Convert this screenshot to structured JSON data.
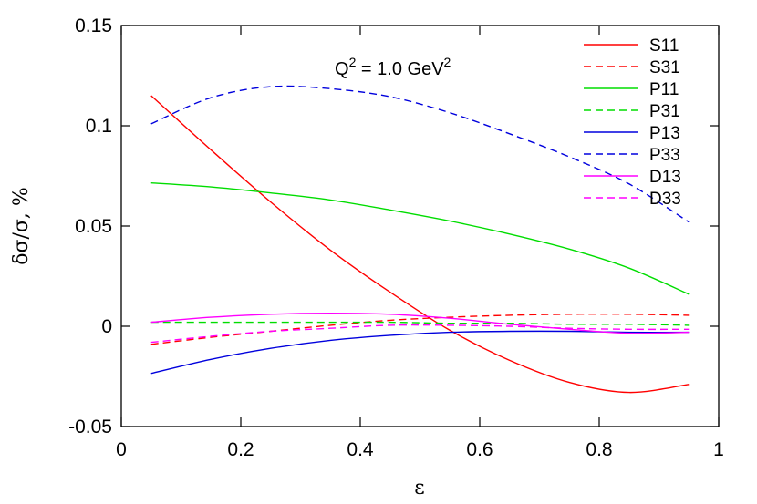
{
  "chart_data": {
    "type": "line",
    "xlabel": "ε",
    "ylabel": "δσ/σ, %",
    "xlim": [
      0,
      1
    ],
    "ylim": [
      -0.05,
      0.15
    ],
    "xticks": [
      "0",
      "0.2",
      "0.4",
      "0.6",
      "0.8",
      "1"
    ],
    "yticks": [
      "-0.05",
      "0",
      "0.05",
      "0.1",
      "0.15"
    ],
    "grid": false,
    "legend_position": "top-right",
    "annotation": {
      "text": "Q",
      "sup1": "2",
      "text2": " = 1.0 GeV",
      "sup2": "2"
    },
    "x": [
      0.05,
      0.15,
      0.25,
      0.35,
      0.45,
      0.55,
      0.65,
      0.75,
      0.85,
      0.95
    ],
    "series": [
      {
        "name": "S11",
        "color": "#ff0000",
        "dash": "solid",
        "values": [
          0.115,
          0.088,
          0.062,
          0.038,
          0.017,
          -0.002,
          -0.017,
          -0.028,
          -0.033,
          -0.029
        ]
      },
      {
        "name": "S31",
        "color": "#ff0000",
        "dash": "dashed",
        "values": [
          -0.009,
          -0.0055,
          -0.0025,
          0.0005,
          0.003,
          0.0045,
          0.0055,
          0.006,
          0.006,
          0.0055
        ]
      },
      {
        "name": "P11",
        "color": "#00dd00",
        "dash": "solid",
        "values": [
          0.0715,
          0.0695,
          0.0665,
          0.063,
          0.058,
          0.0525,
          0.046,
          0.0385,
          0.029,
          0.016
        ]
      },
      {
        "name": "P31",
        "color": "#00dd00",
        "dash": "dashed",
        "values": [
          0.002,
          0.002,
          0.002,
          0.002,
          0.002,
          0.0015,
          0.0015,
          0.001,
          0.001,
          0.0005
        ]
      },
      {
        "name": "P13",
        "color": "#0000dd",
        "dash": "solid",
        "values": [
          -0.0235,
          -0.0165,
          -0.011,
          -0.007,
          -0.0045,
          -0.003,
          -0.0025,
          -0.0025,
          -0.003,
          -0.003
        ]
      },
      {
        "name": "P33",
        "color": "#0000dd",
        "dash": "dashed",
        "values": [
          0.101,
          0.114,
          0.1195,
          0.1185,
          0.1145,
          0.1065,
          0.096,
          0.0845,
          0.071,
          0.052
        ]
      },
      {
        "name": "D13",
        "color": "#ff00ff",
        "dash": "solid",
        "values": [
          0.002,
          0.0045,
          0.006,
          0.0065,
          0.006,
          0.004,
          0.001,
          -0.0015,
          -0.0035,
          -0.003
        ]
      },
      {
        "name": "D33",
        "color": "#ff00ff",
        "dash": "dashed",
        "values": [
          -0.008,
          -0.005,
          -0.0025,
          -0.001,
          0.0005,
          0.0005,
          0.0,
          -0.001,
          -0.0015,
          -0.0015
        ]
      }
    ]
  }
}
